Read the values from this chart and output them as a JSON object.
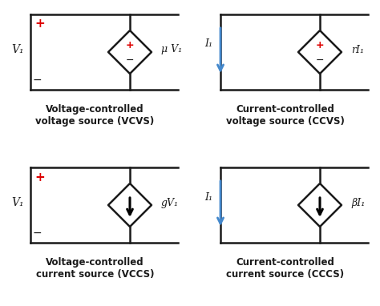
{
  "bg_color": "#ffffff",
  "line_color": "#1a1a1a",
  "red_color": "#dd0000",
  "blue_color": "#4488cc",
  "panels": [
    {
      "title": "Voltage-controlled\nvoltage source (VCVS)",
      "input_label": "V₁",
      "output_label": "μ V₁",
      "has_current_arrow": false,
      "source_type": "voltage",
      "col": 0,
      "row": 0
    },
    {
      "title": "Current-controlled\nvoltage source (CCVS)",
      "input_label": "I₁",
      "output_label": "rI₁",
      "has_current_arrow": true,
      "source_type": "voltage",
      "col": 1,
      "row": 0
    },
    {
      "title": "Voltage-controlled\ncurrent source (VCCS)",
      "input_label": "V₁",
      "output_label": "gV₁",
      "has_current_arrow": false,
      "source_type": "current",
      "col": 0,
      "row": 1
    },
    {
      "title": "Current-controlled\ncurrent source (CCCS)",
      "input_label": "I₁",
      "output_label": "βI₁",
      "has_current_arrow": true,
      "source_type": "current",
      "col": 1,
      "row": 1
    }
  ]
}
